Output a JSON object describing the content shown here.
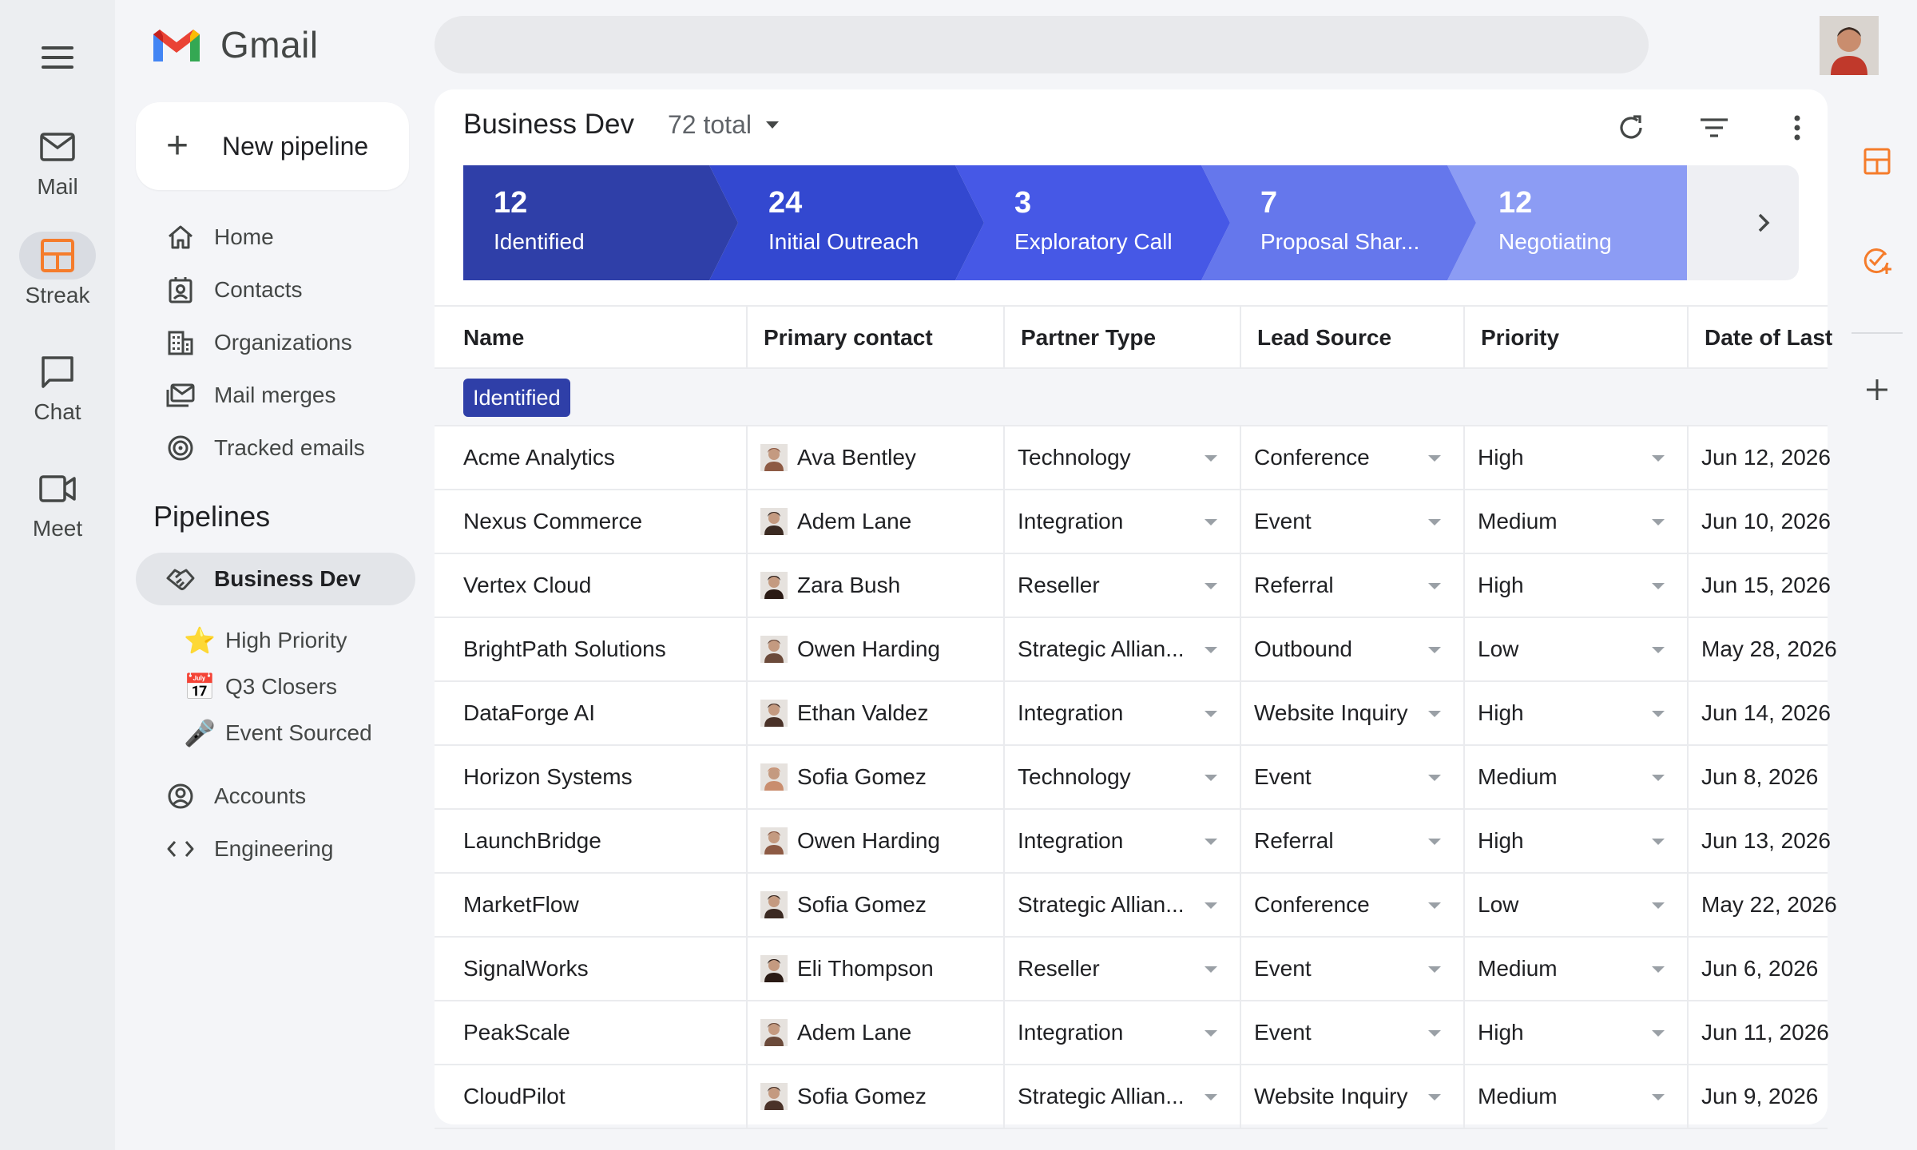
{
  "rail": {
    "items": [
      {
        "label": "Mail",
        "icon": "mail-icon"
      },
      {
        "label": "Streak",
        "icon": "streak-icon"
      },
      {
        "label": "Chat",
        "icon": "chat-icon"
      },
      {
        "label": "Meet",
        "icon": "meet-icon"
      }
    ]
  },
  "brand": {
    "name": "Gmail"
  },
  "nav": {
    "new_button": "New pipeline",
    "items": [
      {
        "label": "Home",
        "icon": "home-icon"
      },
      {
        "label": "Contacts",
        "icon": "contacts-icon"
      },
      {
        "label": "Organizations",
        "icon": "organizations-icon"
      },
      {
        "label": "Mail merges",
        "icon": "mail-merge-icon"
      },
      {
        "label": "Tracked emails",
        "icon": "tracked-emails-icon"
      }
    ],
    "pipelines_heading": "Pipelines",
    "selected_pipeline": "Business Dev",
    "sub_items": [
      {
        "label": "High Priority",
        "emoji": "⭐"
      },
      {
        "label": "Q3 Closers",
        "emoji": "📅"
      },
      {
        "label": "Event Sourced",
        "emoji": "🎤"
      }
    ],
    "other_pipelines": [
      {
        "label": "Accounts",
        "icon": "accounts-icon"
      },
      {
        "label": "Engineering",
        "icon": "code-icon"
      }
    ]
  },
  "panel": {
    "title": "Business Dev",
    "total": "72 total",
    "stages": [
      {
        "count": "12",
        "name": "Identified",
        "color": "#2f3fa8"
      },
      {
        "count": "24",
        "name": "Initial Outreach",
        "color": "#3348d0"
      },
      {
        "count": "3",
        "name": "Exploratory Call",
        "color": "#4658e6"
      },
      {
        "count": "7",
        "name": "Proposal Shar...",
        "color": "#6577ec"
      },
      {
        "count": "12",
        "name": "Negotiating",
        "color": "#8c9cf4"
      }
    ]
  },
  "table": {
    "columns": [
      "Name",
      "Primary contact",
      "Partner Type",
      "Lead Source",
      "Priority",
      "Date of Last"
    ],
    "group": "Identified",
    "rows": [
      {
        "name": "Acme Analytics",
        "contact": "Ava Bentley",
        "partner": "Technology",
        "source": "Conference",
        "priority": "High",
        "date": "Jun 12, 2026"
      },
      {
        "name": "Nexus Commerce",
        "contact": "Adem Lane",
        "partner": "Integration",
        "source": "Event",
        "priority": "Medium",
        "date": "Jun 10, 2026"
      },
      {
        "name": "Vertex Cloud",
        "contact": "Zara Bush",
        "partner": "Reseller",
        "source": "Referral",
        "priority": "High",
        "date": "Jun 15, 2026"
      },
      {
        "name": "BrightPath Solutions",
        "contact": "Owen Harding",
        "partner": "Strategic Allian...",
        "source": "Outbound",
        "priority": "Low",
        "date": "May 28, 2026"
      },
      {
        "name": "DataForge AI",
        "contact": "Ethan Valdez",
        "partner": "Integration",
        "source": "Website Inquiry",
        "priority": "High",
        "date": "Jun 14, 2026"
      },
      {
        "name": "Horizon Systems",
        "contact": "Sofia Gomez",
        "partner": "Technology",
        "source": "Event",
        "priority": "Medium",
        "date": "Jun 8, 2026"
      },
      {
        "name": "LaunchBridge",
        "contact": "Owen Harding",
        "partner": "Integration",
        "source": "Referral",
        "priority": "High",
        "date": "Jun 13, 2026"
      },
      {
        "name": "MarketFlow",
        "contact": "Sofia Gomez",
        "partner": "Strategic Allian...",
        "source": "Conference",
        "priority": "Low",
        "date": "May 22, 2026"
      },
      {
        "name": "SignalWorks",
        "contact": "Eli Thompson",
        "partner": "Reseller",
        "source": "Event",
        "priority": "Medium",
        "date": "Jun 6, 2026"
      },
      {
        "name": "PeakScale",
        "contact": "Adem Lane",
        "partner": "Integration",
        "source": "Event",
        "priority": "High",
        "date": "Jun 11, 2026"
      },
      {
        "name": "CloudPilot",
        "contact": "Sofia Gomez",
        "partner": "Strategic Allian...",
        "source": "Website Inquiry",
        "priority": "Medium",
        "date": "Jun 9, 2026"
      }
    ]
  },
  "colors": {
    "accent_orange": "#f57c2b",
    "stage_dark": "#2f3fa8"
  }
}
